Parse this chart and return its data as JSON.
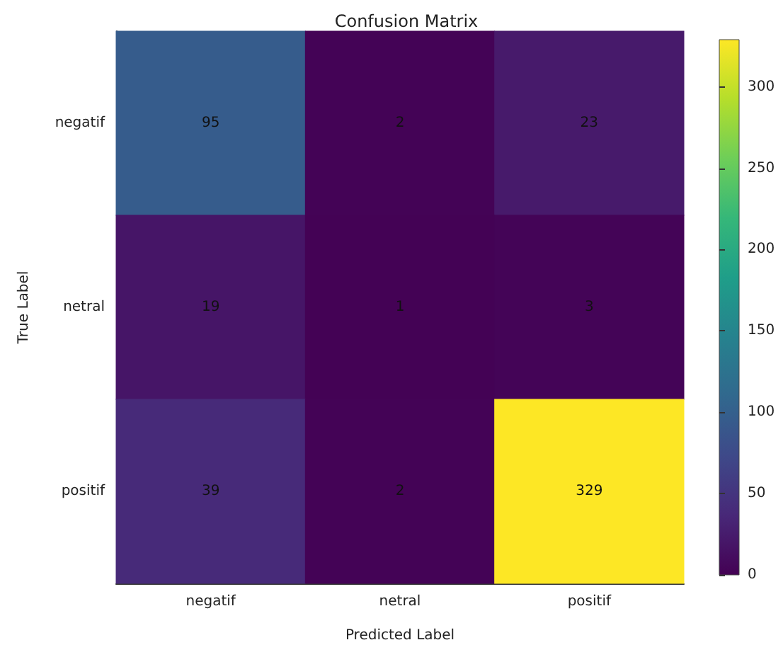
{
  "chart_data": {
    "type": "heatmap",
    "title": "Confusion Matrix",
    "xlabel": "Predicted Label",
    "ylabel": "True Label",
    "categories": [
      "negatif",
      "netral",
      "positif"
    ],
    "y_categories": [
      "negatif",
      "netral",
      "positif"
    ],
    "cells": [
      [
        95,
        2,
        23
      ],
      [
        19,
        1,
        3
      ],
      [
        39,
        2,
        329
      ]
    ],
    "clim": [
      0,
      329
    ],
    "cticks": [
      0,
      50,
      100,
      150,
      200,
      250,
      300
    ],
    "data_labels": true
  }
}
